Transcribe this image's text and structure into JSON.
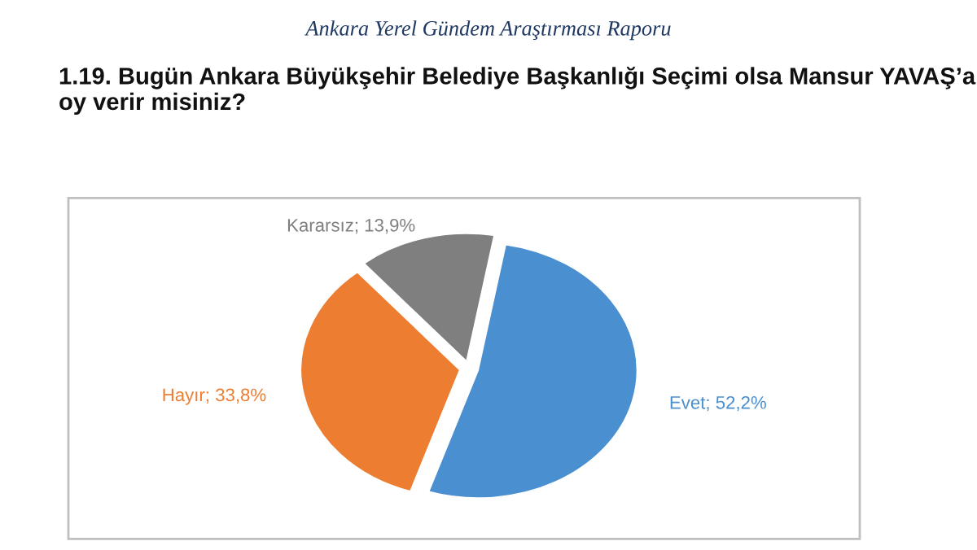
{
  "chart_data": {
    "type": "pie",
    "subtitle": "Ankara Yerel Gündem Araştırması Raporu",
    "title": "1.19. Bugün Ankara Büyükşehir Belediye Başkanlığı Seçimi olsa Mansur YAVAŞ’a oy verir misiniz?",
    "categories": [
      "Evet",
      "Hayır",
      "Kararsız"
    ],
    "values": [
      52.2,
      33.8,
      13.9
    ],
    "value_labels": [
      "52,2%",
      "33,8%",
      "13,9%"
    ],
    "colors": [
      "#4a8fd0",
      "#ed7d31",
      "#7f7f7f"
    ],
    "legend": false
  }
}
